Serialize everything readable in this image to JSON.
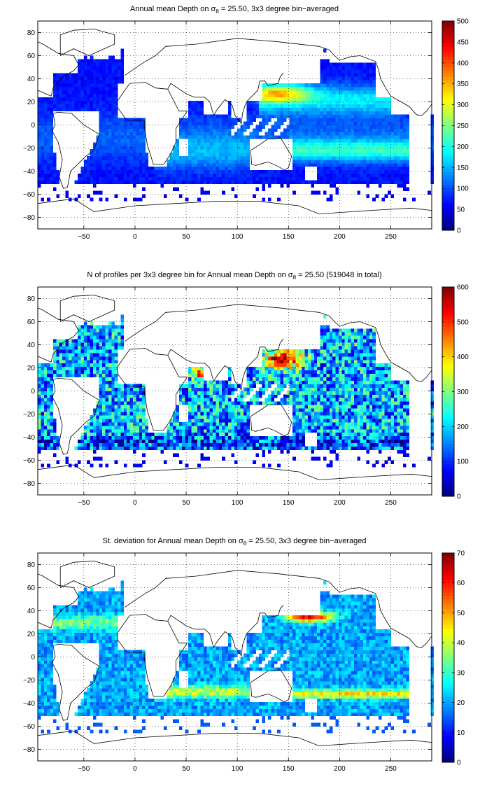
{
  "figure": {
    "background": "#ffffff"
  },
  "chart_data": [
    {
      "type": "heatmap",
      "title_prefix": "Annual mean Depth on ",
      "title_symbol": "σ",
      "title_subscript": "θ",
      "title_suffix": " = 25.50, 3x3 degree bin−averaged",
      "xlim": [
        -95,
        290
      ],
      "ylim": [
        -90,
        90
      ],
      "x_ticks": [
        -50,
        0,
        50,
        100,
        150,
        200,
        250
      ],
      "y_ticks": [
        -80,
        -60,
        -40,
        -20,
        0,
        20,
        40,
        60,
        80
      ],
      "x_tick_labels": [
        "−50",
        "0",
        "50",
        "100",
        "150",
        "200",
        "250"
      ],
      "y_tick_labels": [
        "−80",
        "−60",
        "−40",
        "−20",
        "0",
        "20",
        "40",
        "60",
        "80"
      ],
      "grid": "dotted",
      "colorbar": {
        "min": 0,
        "max": 500,
        "ticks": [
          0,
          50,
          100,
          150,
          200,
          250,
          300,
          350,
          400,
          450,
          500
        ],
        "colormap": "jet"
      },
      "field": "depth"
    },
    {
      "type": "heatmap",
      "title_prefix": "N of profiles per 3x3 degree bin for Annual mean Depth on ",
      "title_symbol": "σ",
      "title_subscript": "θ",
      "title_suffix": " = 25.50 (519048 in total)",
      "xlim": [
        -95,
        290
      ],
      "ylim": [
        -90,
        90
      ],
      "x_ticks": [
        -50,
        0,
        50,
        100,
        150,
        200,
        250
      ],
      "y_ticks": [
        -80,
        -60,
        -40,
        -20,
        0,
        20,
        40,
        60,
        80
      ],
      "x_tick_labels": [
        "−50",
        "0",
        "50",
        "100",
        "150",
        "200",
        "250"
      ],
      "y_tick_labels": [
        "−80",
        "−60",
        "−40",
        "−20",
        "0",
        "20",
        "40",
        "60",
        "80"
      ],
      "grid": "dotted",
      "colorbar": {
        "min": 0,
        "max": 600,
        "ticks": [
          0,
          100,
          200,
          300,
          400,
          500,
          600
        ],
        "colormap": "jet"
      },
      "field": "count"
    },
    {
      "type": "heatmap",
      "title_prefix": "St. deviation for Annual mean Depth on ",
      "title_symbol": "σ",
      "title_subscript": "θ",
      "title_suffix": " = 25.50, 3x3 degree bin−averaged",
      "xlim": [
        -95,
        290
      ],
      "ylim": [
        -90,
        90
      ],
      "x_ticks": [
        -50,
        0,
        50,
        100,
        150,
        200,
        250
      ],
      "y_ticks": [
        -80,
        -60,
        -40,
        -20,
        0,
        20,
        40,
        60,
        80
      ],
      "x_tick_labels": [
        "−50",
        "0",
        "50",
        "100",
        "150",
        "200",
        "250"
      ],
      "y_tick_labels": [
        "−80",
        "−60",
        "−40",
        "−20",
        "0",
        "20",
        "40",
        "60",
        "80"
      ],
      "grid": "dotted",
      "colorbar": {
        "min": 0,
        "max": 70,
        "ticks": [
          0,
          10,
          20,
          30,
          40,
          50,
          60,
          70
        ],
        "colormap": "jet"
      },
      "field": "std"
    }
  ]
}
